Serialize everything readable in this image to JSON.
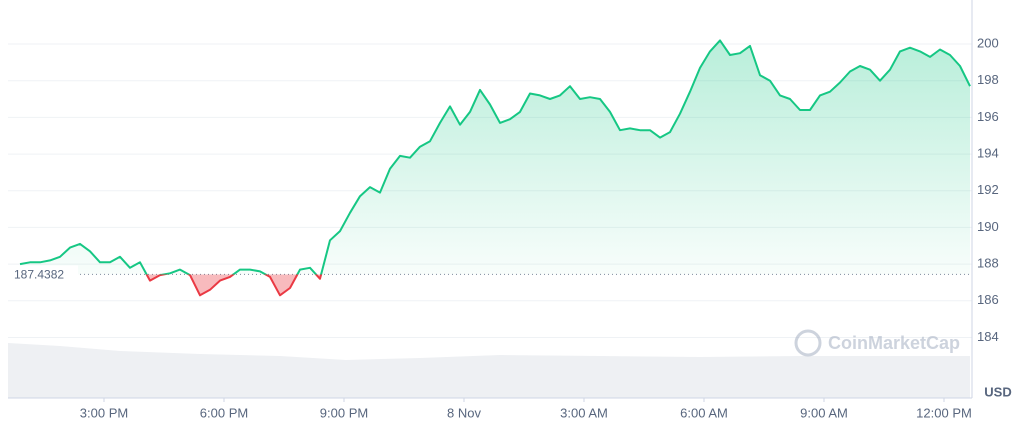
{
  "chart_data": {
    "type": "line",
    "currency": "USD",
    "watermark": "CoinMarketCap",
    "baseline": 187.4382,
    "colors": {
      "up": "#16c784",
      "down": "#ea3943"
    },
    "x": [
      0,
      0.25,
      0.5,
      0.75,
      1,
      1.25,
      1.5,
      1.75,
      2,
      2.25,
      2.5,
      2.75,
      3,
      3.25,
      3.5,
      3.75,
      4,
      4.25,
      4.5,
      4.75,
      5,
      5.25,
      5.5,
      5.75,
      6,
      6.25,
      6.5,
      6.75,
      7,
      7.25,
      7.5,
      7.75,
      8,
      8.25,
      8.5,
      8.75,
      9,
      9.25,
      9.5,
      9.75,
      10,
      10.25,
      10.5,
      10.75,
      11,
      11.25,
      11.5,
      11.75,
      12,
      12.25,
      12.5,
      12.75,
      13,
      13.25,
      13.5,
      13.75,
      14,
      14.25,
      14.5,
      14.75,
      15,
      15.25,
      15.5,
      15.75,
      16,
      16.25,
      16.5,
      16.75,
      17,
      17.25,
      17.5,
      17.75,
      18,
      18.25,
      18.5,
      18.75,
      19,
      19.25,
      19.5,
      19.75,
      20,
      20.25,
      20.5,
      20.75,
      21,
      21.25,
      21.5,
      21.75,
      22,
      22.25,
      22.5,
      22.75,
      23,
      23.25,
      23.5,
      23.75
    ],
    "series": [
      {
        "values": [
          188.0,
          188.1,
          188.1,
          188.2,
          188.4,
          188.9,
          189.1,
          188.7,
          188.1,
          188.1,
          188.4,
          187.8,
          188.1,
          187.1,
          187.4,
          187.5,
          187.7,
          187.4,
          186.3,
          186.6,
          187.1,
          187.3,
          187.7,
          187.7,
          187.6,
          187.3,
          186.3,
          186.7,
          187.7,
          187.8,
          187.2,
          189.3,
          189.8,
          190.8,
          191.7,
          192.2,
          191.9,
          193.2,
          193.9,
          193.8,
          194.4,
          194.7,
          195.7,
          196.6,
          195.6,
          196.3,
          197.5,
          196.7,
          195.7,
          195.9,
          196.3,
          197.3,
          197.2,
          197.0,
          197.2,
          197.7,
          197.0,
          197.1,
          197.0,
          196.3,
          195.3,
          195.4,
          195.3,
          195.3,
          194.9,
          195.2,
          196.2,
          197.4,
          198.7,
          199.6,
          200.2,
          199.4,
          199.5,
          199.9,
          198.3,
          198.0,
          197.2,
          197.0,
          196.4,
          196.4,
          197.2,
          197.4,
          197.9,
          198.5,
          198.8,
          198.6,
          198.0,
          198.6,
          199.6,
          199.8,
          199.6,
          199.3,
          199.7,
          199.4,
          198.8,
          197.7
        ]
      }
    ],
    "xlim": [
      0,
      23.75
    ],
    "xticks": [
      {
        "value": 2.1,
        "label": "3:00 PM"
      },
      {
        "value": 5.1,
        "label": "6:00 PM"
      },
      {
        "value": 8.1,
        "label": "9:00 PM"
      },
      {
        "value": 11.1,
        "label": "8 Nov"
      },
      {
        "value": 14.1,
        "label": "3:00 AM"
      },
      {
        "value": 17.1,
        "label": "6:00 AM"
      },
      {
        "value": 20.1,
        "label": "9:00 AM"
      },
      {
        "value": 23.1,
        "label": "12:00 PM"
      }
    ],
    "ylim": [
      180.7,
      202.4
    ],
    "yticks": [
      184,
      186,
      188,
      190,
      192,
      194,
      196,
      198,
      200
    ],
    "grid": true
  }
}
